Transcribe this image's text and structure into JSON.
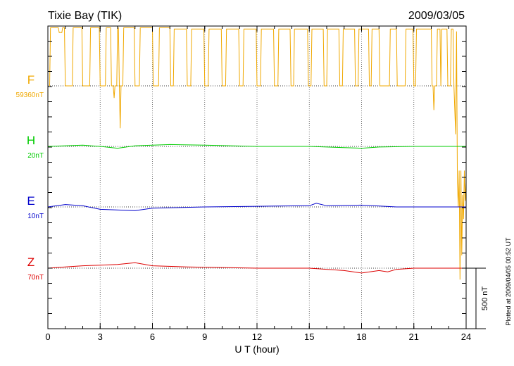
{
  "chart_data": {
    "type": "line",
    "title": "Tixie Bay (TIK)",
    "date": "2009/03/05",
    "xlabel": "U T (hour)",
    "xlim": [
      0,
      24
    ],
    "x_ticks": [
      "0",
      "3",
      "6",
      "9",
      "12",
      "15",
      "18",
      "21",
      "24"
    ],
    "scale_label": "500 nT",
    "scale_nT": 500,
    "plotted_note": "Plotted at 2009/04/05 00:52 UT",
    "grid": true,
    "series": [
      {
        "name": "F",
        "offset_label": "59360nT",
        "color": "#f0a800",
        "baseline_nT": 0,
        "points": [
          [
            0.1,
            0
          ],
          [
            0.15,
            480
          ],
          [
            0.6,
            480
          ],
          [
            0.65,
            440
          ],
          [
            0.8,
            440
          ],
          [
            0.85,
            480
          ],
          [
            0.95,
            480
          ],
          [
            1.0,
            0
          ],
          [
            1.4,
            0
          ],
          [
            1.45,
            480
          ],
          [
            1.95,
            480
          ],
          [
            2.0,
            0
          ],
          [
            2.4,
            0
          ],
          [
            2.45,
            480
          ],
          [
            2.95,
            480
          ],
          [
            3.0,
            0
          ],
          [
            3.3,
            0
          ],
          [
            3.35,
            480
          ],
          [
            3.6,
            480
          ],
          [
            3.65,
            0
          ],
          [
            3.75,
            0
          ],
          [
            3.8,
            -100
          ],
          [
            3.85,
            0
          ],
          [
            3.95,
            0
          ],
          [
            4.0,
            480
          ],
          [
            4.05,
            480
          ],
          [
            4.1,
            0
          ],
          [
            4.15,
            -350
          ],
          [
            4.2,
            0
          ],
          [
            4.3,
            0
          ],
          [
            4.35,
            480
          ],
          [
            4.95,
            480
          ],
          [
            5.0,
            0
          ],
          [
            5.25,
            0
          ],
          [
            5.3,
            480
          ],
          [
            6.0,
            480
          ],
          [
            6.05,
            0
          ],
          [
            6.35,
            0
          ],
          [
            6.4,
            480
          ],
          [
            7.0,
            480
          ],
          [
            7.05,
            0
          ],
          [
            7.2,
            0
          ],
          [
            7.25,
            470
          ],
          [
            7.95,
            470
          ],
          [
            8.0,
            0
          ],
          [
            8.2,
            0
          ],
          [
            8.25,
            470
          ],
          [
            8.95,
            470
          ],
          [
            9.0,
            0
          ],
          [
            9.2,
            0
          ],
          [
            9.25,
            470
          ],
          [
            9.95,
            470
          ],
          [
            10.0,
            0
          ],
          [
            10.2,
            0
          ],
          [
            10.25,
            470
          ],
          [
            10.95,
            470
          ],
          [
            11.0,
            0
          ],
          [
            11.2,
            0
          ],
          [
            11.25,
            470
          ],
          [
            11.95,
            470
          ],
          [
            12.0,
            0
          ],
          [
            12.2,
            0
          ],
          [
            12.25,
            470
          ],
          [
            12.95,
            470
          ],
          [
            13.0,
            0
          ],
          [
            13.2,
            0
          ],
          [
            13.25,
            470
          ],
          [
            13.9,
            470
          ],
          [
            13.95,
            0
          ],
          [
            14.1,
            0
          ],
          [
            14.15,
            470
          ],
          [
            14.9,
            470
          ],
          [
            14.95,
            0
          ],
          [
            15.1,
            0
          ],
          [
            15.15,
            470
          ],
          [
            15.8,
            470
          ],
          [
            15.85,
            0
          ],
          [
            16.0,
            0
          ],
          [
            16.05,
            470
          ],
          [
            16.7,
            470
          ],
          [
            16.75,
            0
          ],
          [
            16.9,
            0
          ],
          [
            16.95,
            470
          ],
          [
            17.6,
            470
          ],
          [
            17.65,
            0
          ],
          [
            17.8,
            0
          ],
          [
            17.85,
            470
          ],
          [
            18.4,
            470
          ],
          [
            18.45,
            0
          ],
          [
            18.55,
            0
          ],
          [
            18.6,
            470
          ],
          [
            19.0,
            470
          ],
          [
            19.05,
            0
          ],
          [
            19.6,
            0
          ],
          [
            19.65,
            470
          ],
          [
            20.0,
            470
          ],
          [
            20.05,
            0
          ],
          [
            20.5,
            0
          ],
          [
            20.55,
            470
          ],
          [
            20.95,
            470
          ],
          [
            21.0,
            0
          ],
          [
            21.1,
            0
          ],
          [
            21.15,
            470
          ],
          [
            22.0,
            470
          ],
          [
            22.05,
            0
          ],
          [
            22.1,
            0
          ],
          [
            22.15,
            -200
          ],
          [
            22.2,
            0
          ],
          [
            22.3,
            0
          ],
          [
            22.35,
            470
          ],
          [
            22.5,
            470
          ],
          [
            22.55,
            0
          ],
          [
            22.6,
            470
          ],
          [
            22.9,
            470
          ],
          [
            22.95,
            0
          ],
          [
            23.1,
            0
          ],
          [
            23.15,
            470
          ],
          [
            23.25,
            470
          ],
          [
            23.3,
            0
          ],
          [
            23.4,
            -400
          ],
          [
            23.45,
            450
          ],
          [
            23.5,
            -800
          ],
          [
            23.55,
            -1000
          ],
          [
            23.6,
            -700
          ],
          [
            23.65,
            -1600
          ],
          [
            23.7,
            -700
          ],
          [
            23.75,
            -1400
          ],
          [
            23.8,
            -900
          ],
          [
            23.85,
            -1100
          ],
          [
            23.9,
            -700
          ],
          [
            23.95,
            -950
          ],
          [
            24.0,
            -800
          ]
        ]
      },
      {
        "name": "H",
        "offset_label": "20nT",
        "color": "#00cc00",
        "baseline_nT": 0,
        "points": [
          [
            0,
            0
          ],
          [
            2,
            10
          ],
          [
            3,
            0
          ],
          [
            4,
            -15
          ],
          [
            5,
            5
          ],
          [
            7,
            15
          ],
          [
            9,
            10
          ],
          [
            12,
            0
          ],
          [
            15,
            0
          ],
          [
            17,
            -10
          ],
          [
            18,
            -15
          ],
          [
            19,
            -5
          ],
          [
            21,
            0
          ],
          [
            24,
            0
          ]
        ]
      },
      {
        "name": "E",
        "offset_label": "10nT",
        "color": "#0000cc",
        "baseline_nT": 0,
        "points": [
          [
            0,
            0
          ],
          [
            1,
            20
          ],
          [
            2,
            10
          ],
          [
            3,
            -20
          ],
          [
            5,
            -30
          ],
          [
            6,
            -10
          ],
          [
            9,
            0
          ],
          [
            12,
            5
          ],
          [
            15,
            10
          ],
          [
            15.4,
            30
          ],
          [
            16,
            10
          ],
          [
            18,
            15
          ],
          [
            20,
            0
          ],
          [
            24,
            0
          ]
        ]
      },
      {
        "name": "Z",
        "offset_label": "70nT",
        "color": "#dd0000",
        "baseline_nT": 0,
        "points": [
          [
            0,
            0
          ],
          [
            1,
            10
          ],
          [
            2,
            20
          ],
          [
            3,
            25
          ],
          [
            4,
            30
          ],
          [
            5,
            45
          ],
          [
            6,
            20
          ],
          [
            8,
            10
          ],
          [
            12,
            0
          ],
          [
            15,
            0
          ],
          [
            17,
            -20
          ],
          [
            18,
            -40
          ],
          [
            19,
            -20
          ],
          [
            19.5,
            -30
          ],
          [
            20,
            -10
          ],
          [
            21,
            0
          ],
          [
            24,
            0
          ]
        ]
      }
    ]
  }
}
